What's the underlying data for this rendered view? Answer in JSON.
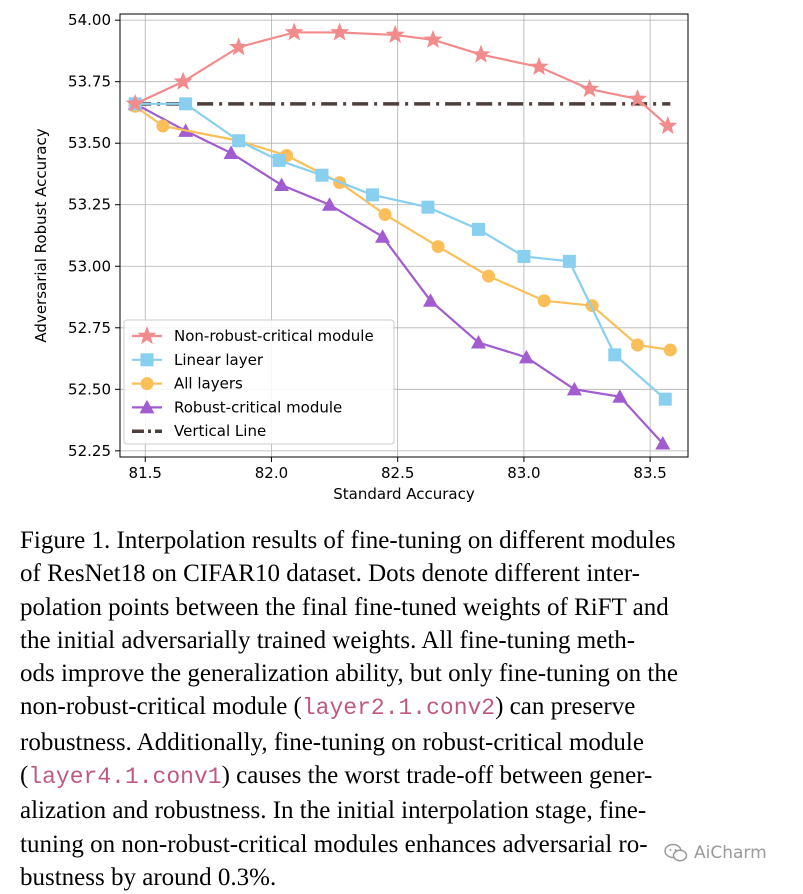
{
  "chart_data": {
    "type": "line",
    "xlabel": "Standard Accuracy",
    "ylabel": "Adversarial Robust Accuracy",
    "xlim": [
      81.4,
      83.65
    ],
    "ylim": [
      52.225,
      54.025
    ],
    "xticks": [
      81.5,
      82.0,
      82.5,
      83.0,
      83.5
    ],
    "xtick_labels": [
      "81.5",
      "82.0",
      "82.5",
      "83.0",
      "83.5"
    ],
    "yticks": [
      52.25,
      52.5,
      52.75,
      53.0,
      53.25,
      53.5,
      53.75,
      54.0
    ],
    "ytick_labels": [
      "52.25",
      "52.50",
      "52.75",
      "53.00",
      "53.25",
      "53.50",
      "53.75",
      "54.00"
    ],
    "grid": true,
    "legend_position": "lower-left",
    "series": [
      {
        "name": "Non-robust-critical module",
        "color": "#f28b8b",
        "marker": "star",
        "points": [
          [
            81.46,
            53.66
          ],
          [
            81.65,
            53.75
          ],
          [
            81.87,
            53.89
          ],
          [
            82.09,
            53.95
          ],
          [
            82.27,
            53.95
          ],
          [
            82.49,
            53.94
          ],
          [
            82.64,
            53.92
          ],
          [
            82.83,
            53.86
          ],
          [
            83.06,
            53.81
          ],
          [
            83.26,
            53.72
          ],
          [
            83.45,
            53.68
          ],
          [
            83.57,
            53.57
          ]
        ]
      },
      {
        "name": "Linear layer",
        "color": "#89cff0",
        "marker": "square",
        "points": [
          [
            81.46,
            53.66
          ],
          [
            81.66,
            53.66
          ],
          [
            81.87,
            53.51
          ],
          [
            82.03,
            53.43
          ],
          [
            82.2,
            53.37
          ],
          [
            82.4,
            53.29
          ],
          [
            82.62,
            53.24
          ],
          [
            82.82,
            53.15
          ],
          [
            83.0,
            53.04
          ],
          [
            83.18,
            53.02
          ],
          [
            83.36,
            52.64
          ],
          [
            83.56,
            52.46
          ]
        ]
      },
      {
        "name": "All layers",
        "color": "#fbbf5a",
        "marker": "circle",
        "points": [
          [
            81.46,
            53.65
          ],
          [
            81.57,
            53.57
          ],
          [
            81.87,
            53.51
          ],
          [
            82.06,
            53.45
          ],
          [
            82.27,
            53.34
          ],
          [
            82.45,
            53.21
          ],
          [
            82.66,
            53.08
          ],
          [
            82.86,
            52.96
          ],
          [
            83.08,
            52.86
          ],
          [
            83.27,
            52.84
          ],
          [
            83.45,
            52.68
          ],
          [
            83.58,
            52.66
          ]
        ]
      },
      {
        "name": "Robust-critical module",
        "color": "#a15cd0",
        "marker": "triangle",
        "points": [
          [
            81.46,
            53.66
          ],
          [
            81.66,
            53.55
          ],
          [
            81.84,
            53.46
          ],
          [
            82.04,
            53.33
          ],
          [
            82.23,
            53.25
          ],
          [
            82.44,
            53.12
          ],
          [
            82.63,
            52.86
          ],
          [
            82.82,
            52.69
          ],
          [
            83.01,
            52.63
          ],
          [
            83.2,
            52.5
          ],
          [
            83.38,
            52.47
          ],
          [
            83.55,
            52.28
          ]
        ]
      }
    ],
    "reference_line": {
      "name": "Vertical Line",
      "color": "#4f3f3a",
      "y": 53.66,
      "x_range": [
        81.46,
        83.58
      ],
      "style": "dash-dot"
    }
  },
  "caption": {
    "lines": [
      "Figure 1. Interpolation results of fine-tuning on different modules",
      "of ResNet18 on CIFAR10 dataset.  Dots denote different inter-",
      "polation points between the final fine-tuned weights of RiFT and",
      "the initial adversarially trained weights.  All fine-tuning meth-",
      "ods improve the generalization ability, but only fine-tuning on the"
    ],
    "line6_pre": "non-robust-critical module (",
    "line6_code": "layer2.1.conv2",
    "line6_post": ") can preserve",
    "line7": "robustness.  Additionally, fine-tuning on robust-critical module",
    "line8_pre": "(",
    "line8_code": "layer4.1.conv1",
    "line8_post": ") causes the worst trade-off between gener-",
    "line9": "alization and robustness.  In the initial interpolation stage, fine-",
    "line10": "tuning on non-robust-critical modules enhances adversarial ro-",
    "line11": "bustness by around 0.3%."
  },
  "watermark": {
    "text": "AiCharm",
    "icon": "wechat-icon"
  }
}
